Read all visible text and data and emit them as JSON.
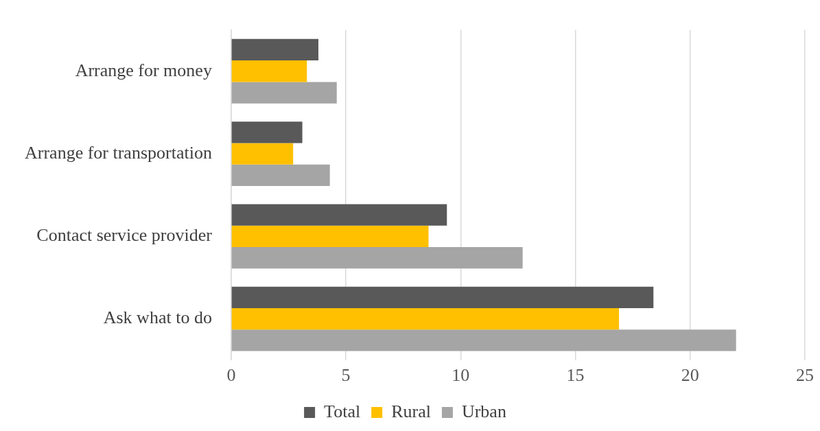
{
  "chart_data": {
    "type": "bar",
    "orientation": "horizontal",
    "categories": [
      "Arrange for money",
      "Arrange for transportation",
      "Contact service provider",
      "Ask what to do"
    ],
    "series": [
      {
        "name": "Total",
        "color": "#595959",
        "values": [
          3.8,
          3.1,
          9.4,
          18.4
        ]
      },
      {
        "name": "Rural",
        "color": "#ffc000",
        "values": [
          3.3,
          2.7,
          8.6,
          16.9
        ]
      },
      {
        "name": "Urban",
        "color": "#a5a5a5",
        "values": [
          4.6,
          4.3,
          12.7,
          22.0
        ]
      }
    ],
    "xlim": [
      0,
      25
    ],
    "xticks": [
      0,
      5,
      10,
      15,
      20,
      25
    ],
    "grid": "x",
    "legend": "bottom"
  }
}
